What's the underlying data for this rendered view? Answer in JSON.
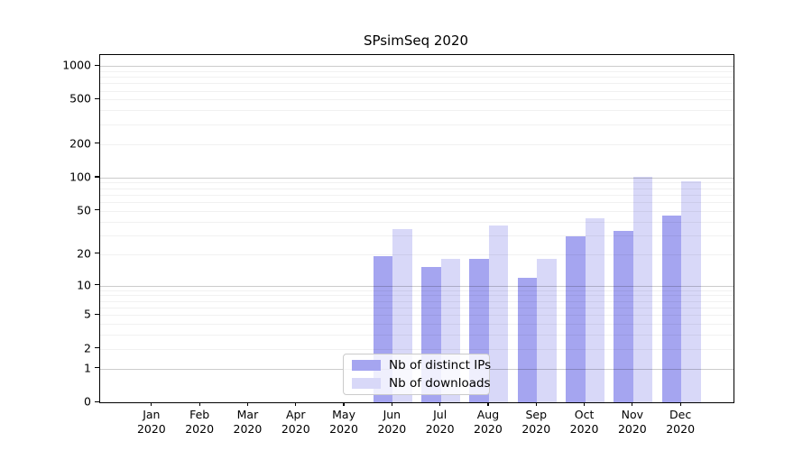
{
  "title": "SPsimSeq 2020",
  "colors": {
    "ips_bar": "#a5a5f0",
    "downloads_bar": "#d8d8f8",
    "axis": "#000000",
    "grid_major": "#cccccc",
    "grid_minor": "#ececec",
    "legend_border": "#cbcbcb"
  },
  "legend": {
    "items": [
      {
        "label": "Nb of distinct IPs",
        "color": "#a5a5f0"
      },
      {
        "label": "Nb of downloads",
        "color": "#d8d8f8"
      }
    ]
  },
  "y_axis": {
    "tick_labels": [
      "1000",
      "500",
      "200",
      "100",
      "50",
      "20",
      "10",
      "5",
      "2",
      "1",
      "0"
    ],
    "tick_values": [
      1000,
      500,
      200,
      100,
      50,
      20,
      10,
      5,
      2,
      1,
      0
    ]
  },
  "x_axis": {
    "months": [
      "Jan",
      "Feb",
      "Mar",
      "Apr",
      "May",
      "Jun",
      "Jul",
      "Aug",
      "Sep",
      "Oct",
      "Nov",
      "Dec"
    ],
    "year": "2020"
  },
  "chart_data": {
    "type": "bar",
    "title": "SPsimSeq 2020",
    "categories": [
      "Jan 2020",
      "Feb 2020",
      "Mar 2020",
      "Apr 2020",
      "May 2020",
      "Jun 2020",
      "Jul 2020",
      "Aug 2020",
      "Sep 2020",
      "Oct 2020",
      "Nov 2020",
      "Dec 2020"
    ],
    "series": [
      {
        "name": "Nb of distinct IPs",
        "color": "#a5a5f0",
        "values": [
          0,
          0,
          0,
          0,
          0,
          19,
          15,
          18,
          12,
          29,
          33,
          45
        ]
      },
      {
        "name": "Nb of downloads",
        "color": "#d8d8f8",
        "values": [
          0,
          0,
          0,
          0,
          0,
          34,
          18,
          37,
          18,
          43,
          101,
          92
        ]
      }
    ],
    "xlabel": "",
    "ylabel": "",
    "yscale": "log1p",
    "ylim": [
      0,
      1250
    ],
    "y_ticks": [
      0,
      1,
      2,
      5,
      10,
      20,
      50,
      100,
      200,
      500,
      1000
    ],
    "grid": "horizontal, drawn over bars; major at 1/10/100/1000, minor at 2-9 mantissas",
    "legend_position": "lower center"
  }
}
